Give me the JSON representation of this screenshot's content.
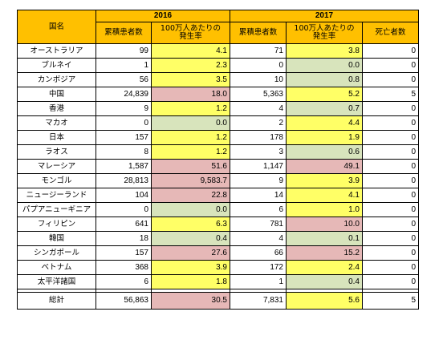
{
  "table": {
    "header": {
      "country": "国名",
      "year_2016": "2016",
      "year_2017": "2017",
      "cumulative": "累積患者数",
      "rate_line1": "100万人あたりの",
      "rate_line2": "発生率",
      "deaths": "死亡者数"
    },
    "rows": [
      {
        "name": "オーストラリア",
        "c2016": "99",
        "r2016": "4.1",
        "c2017": "71",
        "r2017": "3.8",
        "deaths": "0",
        "col2016": "yellow",
        "col2017": "yellow"
      },
      {
        "name": "ブルネイ",
        "c2016": "1",
        "r2016": "2.3",
        "c2017": "0",
        "r2017": "0.0",
        "deaths": "0",
        "col2016": "yellow",
        "col2017": "green"
      },
      {
        "name": "カンボジア",
        "c2016": "56",
        "r2016": "3.5",
        "c2017": "10",
        "r2017": "0.8",
        "deaths": "0",
        "col2016": "yellow",
        "col2017": "green"
      },
      {
        "name": "中国",
        "c2016": "24,839",
        "r2016": "18.0",
        "c2017": "5,363",
        "r2017": "5.2",
        "deaths": "5",
        "col2016": "pink",
        "col2017": "yellow"
      },
      {
        "name": "香港",
        "c2016": "9",
        "r2016": "1.2",
        "c2017": "4",
        "r2017": "0.7",
        "deaths": "0",
        "col2016": "yellow",
        "col2017": "green"
      },
      {
        "name": "マカオ",
        "c2016": "0",
        "r2016": "0.0",
        "c2017": "2",
        "r2017": "4.4",
        "deaths": "0",
        "col2016": "green",
        "col2017": "yellow"
      },
      {
        "name": "日本",
        "c2016": "157",
        "r2016": "1.2",
        "c2017": "178",
        "r2017": "1.9",
        "deaths": "0",
        "col2016": "yellow",
        "col2017": "yellow"
      },
      {
        "name": "ラオス",
        "c2016": "8",
        "r2016": "1.2",
        "c2017": "3",
        "r2017": "0.6",
        "deaths": "0",
        "col2016": "yellow",
        "col2017": "green"
      },
      {
        "name": "マレーシア",
        "c2016": "1,587",
        "r2016": "51.6",
        "c2017": "1,147",
        "r2017": "49.1",
        "deaths": "0",
        "col2016": "pink",
        "col2017": "pink"
      },
      {
        "name": "モンゴル",
        "c2016": "28,813",
        "r2016": "9,583.7",
        "c2017": "9",
        "r2017": "3.9",
        "deaths": "0",
        "col2016": "pink",
        "col2017": "yellow"
      },
      {
        "name": "ニュージーランド",
        "c2016": "104",
        "r2016": "22.8",
        "c2017": "14",
        "r2017": "4.1",
        "deaths": "0",
        "col2016": "pink",
        "col2017": "yellow"
      },
      {
        "name": "パプアニューギニア",
        "c2016": "0",
        "r2016": "0.0",
        "c2017": "6",
        "r2017": "1.0",
        "deaths": "0",
        "col2016": "green",
        "col2017": "yellow"
      },
      {
        "name": "フィリピン",
        "c2016": "641",
        "r2016": "6.3",
        "c2017": "781",
        "r2017": "10.0",
        "deaths": "0",
        "col2016": "yellow",
        "col2017": "pink"
      },
      {
        "name": "韓国",
        "c2016": "18",
        "r2016": "0.4",
        "c2017": "4",
        "r2017": "0.1",
        "deaths": "0",
        "col2016": "green",
        "col2017": "green"
      },
      {
        "name": "シンガポール",
        "c2016": "157",
        "r2016": "27.6",
        "c2017": "66",
        "r2017": "15.2",
        "deaths": "0",
        "col2016": "pink",
        "col2017": "pink"
      },
      {
        "name": "ベトナム",
        "c2016": "368",
        "r2016": "3.9",
        "c2017": "172",
        "r2017": "2.4",
        "deaths": "0",
        "col2016": "yellow",
        "col2017": "yellow"
      },
      {
        "name": "太平洋諸国",
        "c2016": "6",
        "r2016": "1.8",
        "c2017": "1",
        "r2017": "0.4",
        "deaths": "0",
        "col2016": "yellow",
        "col2017": "green"
      }
    ],
    "total": {
      "name": "総計",
      "c2016": "56,863",
      "r2016": "30.5",
      "c2017": "7,831",
      "r2017": "5.6",
      "deaths": "5",
      "col2016": "pink",
      "col2017": "yellow"
    }
  },
  "colors": {
    "header": "#ffc000",
    "yellow": "#ffff66",
    "green": "#d8e4bc",
    "pink": "#e6b8b7"
  }
}
